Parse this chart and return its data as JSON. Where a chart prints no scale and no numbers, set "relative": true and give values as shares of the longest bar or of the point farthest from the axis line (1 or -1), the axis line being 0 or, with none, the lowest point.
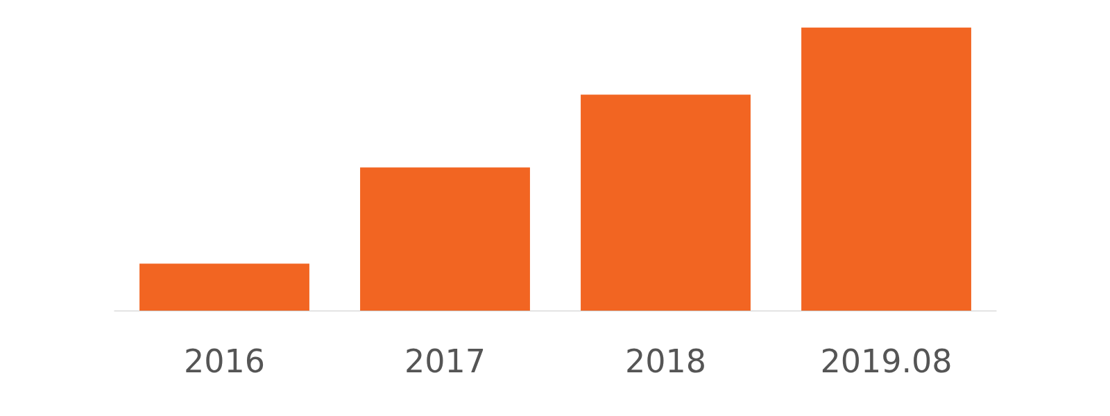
{
  "chart_data": {
    "type": "bar",
    "relative": true,
    "categories": [
      "2016",
      "2017",
      "2018",
      "2019.08"
    ],
    "values": [
      0.167,
      0.506,
      0.763,
      1
    ],
    "color": "#f26522"
  }
}
